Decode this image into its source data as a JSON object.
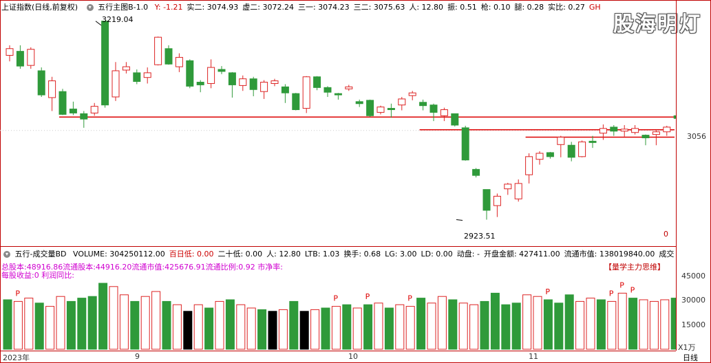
{
  "main_header": {
    "index_name": "上证指数(日线,前复权)",
    "indicator": "五行主图B-1.0",
    "items": [
      {
        "label": "Y: -1.21",
        "color": "#cc0000"
      },
      {
        "label": "实二: 3074.93",
        "color": "#000000"
      },
      {
        "label": "虚二: 3072.24",
        "color": "#000000"
      },
      {
        "label": "三一: 3074.23",
        "color": "#000000"
      },
      {
        "label": "三二: 3075.63",
        "color": "#000000"
      },
      {
        "label": "人: 12.80",
        "color": "#000000"
      },
      {
        "label": "振: 0.51",
        "color": "#000000"
      },
      {
        "label": "枪: 0.10",
        "color": "#000000"
      },
      {
        "label": "腿: 0.28",
        "color": "#000000"
      },
      {
        "label": "实比: 0.27",
        "color": "#000000"
      },
      {
        "label": "GH",
        "color": "#cc0000"
      }
    ]
  },
  "watermark": "股海明灯",
  "price_axis": {
    "label_3056": "3056",
    "label_0": "0"
  },
  "annotations": {
    "high": "3219.04",
    "low": "2923.51"
  },
  "volume_header": {
    "indicator": "五行-成交量BD",
    "items": [
      {
        "label": "VOLUME: 304250112.00",
        "color": "#000000"
      },
      {
        "label": "百日低: 0.00",
        "color": "#cc0000"
      },
      {
        "label": "二十低: 0.00",
        "color": "#000000"
      },
      {
        "label": "人: 12.80",
        "color": "#000000"
      },
      {
        "label": "LTB: 1.03",
        "color": "#000000"
      },
      {
        "label": "换手: 0.68",
        "color": "#000000"
      },
      {
        "label": "LG: 3.00",
        "color": "#000000"
      },
      {
        "label": "LD: 0.00",
        "color": "#000000"
      },
      {
        "label": "动盘: -",
        "color": "#000000"
      },
      {
        "label": "开盘金额: 427411.00",
        "color": "#000000"
      },
      {
        "label": "流通市值: 138019840.00",
        "color": "#000000"
      },
      {
        "label": "成交",
        "color": "#000000"
      }
    ]
  },
  "volume_info": {
    "line1": "总股本:48916.86流通股本:44916.20流通市值:425676.91流通比例:0.92  市净率:",
    "line2": "每股收益:0    利润同比:",
    "brand": "【量学主力思维】"
  },
  "volume_axis": {
    "v45000": "45000",
    "v30000": "30000",
    "v15000": "15000",
    "unit": "X1万"
  },
  "date_axis": {
    "year": "2023年",
    "m9": "9",
    "m10": "10",
    "m11": "11",
    "period": "日线"
  },
  "colors": {
    "up": "#dd2222",
    "down": "#2f9a3a",
    "black": "#000000",
    "hline": "#dd0000"
  },
  "chart_data": {
    "type": "candlestick",
    "price_range": [
      2900,
      3230
    ],
    "candles": [
      {
        "o": 3168,
        "c": 3178,
        "h": 3183,
        "l": 3159
      },
      {
        "o": 3174,
        "c": 3152,
        "h": 3183,
        "l": 3148
      },
      {
        "o": 3153,
        "c": 3177,
        "h": 3180,
        "l": 3148
      },
      {
        "o": 3145,
        "c": 3109,
        "h": 3150,
        "l": 3106
      },
      {
        "o": 3105,
        "c": 3130,
        "h": 3136,
        "l": 3085
      },
      {
        "o": 3114,
        "c": 3080,
        "h": 3118,
        "l": 3079
      },
      {
        "o": 3088,
        "c": 3082,
        "h": 3099,
        "l": 3079
      },
      {
        "o": 3081,
        "c": 3073,
        "h": 3085,
        "l": 3060
      },
      {
        "o": 3082,
        "c": 3092,
        "h": 3097,
        "l": 3078
      },
      {
        "o": 3219,
        "c": 3094,
        "h": 3219,
        "l": 3090
      },
      {
        "o": 3106,
        "c": 3145,
        "h": 3158,
        "l": 3100
      },
      {
        "o": 3146,
        "c": 3151,
        "h": 3158,
        "l": 3141
      },
      {
        "o": 3142,
        "c": 3129,
        "h": 3147,
        "l": 3125
      },
      {
        "o": 3135,
        "c": 3142,
        "h": 3150,
        "l": 3126
      },
      {
        "o": 3154,
        "c": 3195,
        "h": 3196,
        "l": 3153
      },
      {
        "o": 3178,
        "c": 3155,
        "h": 3183,
        "l": 3154
      },
      {
        "o": 3151,
        "c": 3165,
        "h": 3171,
        "l": 3143
      },
      {
        "o": 3160,
        "c": 3122,
        "h": 3162,
        "l": 3119
      },
      {
        "o": 3128,
        "c": 3124,
        "h": 3131,
        "l": 3113
      },
      {
        "o": 3126,
        "c": 3150,
        "h": 3162,
        "l": 3119
      },
      {
        "o": 3147,
        "c": 3144,
        "h": 3152,
        "l": 3140
      },
      {
        "o": 3142,
        "c": 3124,
        "h": 3143,
        "l": 3105
      },
      {
        "o": 3123,
        "c": 3133,
        "h": 3138,
        "l": 3115
      },
      {
        "o": 3133,
        "c": 3117,
        "h": 3136,
        "l": 3107
      },
      {
        "o": 3114,
        "c": 3128,
        "h": 3131,
        "l": 3103
      },
      {
        "o": 3126,
        "c": 3130,
        "h": 3133,
        "l": 3122
      },
      {
        "o": 3121,
        "c": 3112,
        "h": 3125,
        "l": 3097
      },
      {
        "o": 3111,
        "c": 3087,
        "h": 3112,
        "l": 3086
      },
      {
        "o": 3089,
        "c": 3136,
        "h": 3137,
        "l": 3082
      },
      {
        "o": 3136,
        "c": 3120,
        "h": 3137,
        "l": 3116
      },
      {
        "o": 3120,
        "c": 3113,
        "h": 3122,
        "l": 3106
      },
      {
        "o": 3111,
        "c": 3109,
        "h": 3112,
        "l": 3102
      },
      {
        "o": 3118,
        "c": 3121,
        "h": 3124,
        "l": 3115
      },
      {
        "o": 3099,
        "c": 3096,
        "h": 3102,
        "l": 3091
      },
      {
        "o": 3101,
        "c": 3078,
        "h": 3102,
        "l": 3076
      },
      {
        "o": 3083,
        "c": 3091,
        "h": 3093,
        "l": 3080
      },
      {
        "o": 3089,
        "c": 3087,
        "h": 3096,
        "l": 3075
      },
      {
        "o": 3094,
        "c": 3103,
        "h": 3106,
        "l": 3086
      },
      {
        "o": 3108,
        "c": 3112,
        "h": 3115,
        "l": 3101
      },
      {
        "o": 3098,
        "c": 3093,
        "h": 3102,
        "l": 3086
      },
      {
        "o": 3094,
        "c": 3083,
        "h": 3096,
        "l": 3070
      },
      {
        "o": 3078,
        "c": 3087,
        "h": 3090,
        "l": 3070
      },
      {
        "o": 3081,
        "c": 3064,
        "h": 3081,
        "l": 3062
      },
      {
        "o": 3060,
        "c": 3012,
        "h": 3063,
        "l": 3011
      },
      {
        "o": 2998,
        "c": 2989,
        "h": 3000,
        "l": 2986
      },
      {
        "o": 2968,
        "c": 2937,
        "h": 2968,
        "l": 2923
      },
      {
        "o": 2944,
        "c": 2958,
        "h": 2962,
        "l": 2927
      },
      {
        "o": 2969,
        "c": 2976,
        "h": 2978,
        "l": 2960
      },
      {
        "o": 2954,
        "c": 2977,
        "h": 2983,
        "l": 2950
      },
      {
        "o": 2990,
        "c": 3017,
        "h": 3022,
        "l": 2977
      },
      {
        "o": 3013,
        "c": 3022,
        "h": 3025,
        "l": 3005
      },
      {
        "o": 3023,
        "c": 3017,
        "h": 3024,
        "l": 3014
      },
      {
        "o": 3035,
        "c": 3046,
        "h": 3048,
        "l": 3016
      },
      {
        "o": 3034,
        "c": 3016,
        "h": 3039,
        "l": 3010
      },
      {
        "o": 3017,
        "c": 3039,
        "h": 3041,
        "l": 3016
      },
      {
        "o": 3040,
        "c": 3038,
        "h": 3048,
        "l": 3030
      },
      {
        "o": 3052,
        "c": 3059,
        "h": 3065,
        "l": 3042
      },
      {
        "o": 3061,
        "c": 3055,
        "h": 3064,
        "l": 3048
      },
      {
        "o": 3055,
        "c": 3058,
        "h": 3064,
        "l": 3047
      },
      {
        "o": 3053,
        "c": 3059,
        "h": 3064,
        "l": 3050
      },
      {
        "o": 3049,
        "c": 3045,
        "h": 3050,
        "l": 3034
      },
      {
        "o": 3050,
        "c": 3054,
        "h": 3056,
        "l": 3034
      },
      {
        "o": 3054,
        "c": 3061,
        "h": 3063,
        "l": 3048
      },
      {
        "o": 3078,
        "c": 3074,
        "h": 3081,
        "l": 3066
      }
    ],
    "hlines": [
      3076,
      3057,
      3046
    ],
    "volume": [
      {
        "v": 30000,
        "t": "down"
      },
      {
        "v": 29000,
        "t": "up"
      },
      {
        "v": 31000,
        "t": "up"
      },
      {
        "v": 28000,
        "t": "down"
      },
      {
        "v": 26000,
        "t": "up"
      },
      {
        "v": 32000,
        "t": "up"
      },
      {
        "v": 29000,
        "t": "down"
      },
      {
        "v": 31000,
        "t": "down"
      },
      {
        "v": 32000,
        "t": "down"
      },
      {
        "v": 40000,
        "t": "down"
      },
      {
        "v": 38000,
        "t": "up"
      },
      {
        "v": 33000,
        "t": "up"
      },
      {
        "v": 29000,
        "t": "down"
      },
      {
        "v": 32000,
        "t": "up"
      },
      {
        "v": 35000,
        "t": "up"
      },
      {
        "v": 29000,
        "t": "down"
      },
      {
        "v": 27000,
        "t": "up"
      },
      {
        "v": 23000,
        "t": "black"
      },
      {
        "v": 27000,
        "t": "up"
      },
      {
        "v": 25000,
        "t": "down"
      },
      {
        "v": 29000,
        "t": "up"
      },
      {
        "v": 30000,
        "t": "down"
      },
      {
        "v": 27000,
        "t": "up"
      },
      {
        "v": 25000,
        "t": "up"
      },
      {
        "v": 24000,
        "t": "down"
      },
      {
        "v": 23000,
        "t": "black"
      },
      {
        "v": 24000,
        "t": "up"
      },
      {
        "v": 29000,
        "t": "down"
      },
      {
        "v": 23000,
        "t": "black"
      },
      {
        "v": 24000,
        "t": "up"
      },
      {
        "v": 25000,
        "t": "down"
      },
      {
        "v": 26000,
        "t": "up"
      },
      {
        "v": 27000,
        "t": "down"
      },
      {
        "v": 25000,
        "t": "up"
      },
      {
        "v": 27000,
        "t": "down"
      },
      {
        "v": 28000,
        "t": "up"
      },
      {
        "v": 25000,
        "t": "down"
      },
      {
        "v": 27000,
        "t": "up"
      },
      {
        "v": 26000,
        "t": "up"
      },
      {
        "v": 31000,
        "t": "down"
      },
      {
        "v": 28000,
        "t": "up"
      },
      {
        "v": 32000,
        "t": "up"
      },
      {
        "v": 30000,
        "t": "down"
      },
      {
        "v": 28000,
        "t": "up"
      },
      {
        "v": 27000,
        "t": "up"
      },
      {
        "v": 29000,
        "t": "down"
      },
      {
        "v": 34000,
        "t": "down"
      },
      {
        "v": 27000,
        "t": "down"
      },
      {
        "v": 28000,
        "t": "down"
      },
      {
        "v": 33000,
        "t": "up"
      },
      {
        "v": 32000,
        "t": "up"
      },
      {
        "v": 30000,
        "t": "down"
      },
      {
        "v": 28000,
        "t": "down"
      },
      {
        "v": 33000,
        "t": "down"
      },
      {
        "v": 29000,
        "t": "up"
      },
      {
        "v": 31000,
        "t": "up"
      },
      {
        "v": 30000,
        "t": "down"
      },
      {
        "v": 29000,
        "t": "up"
      },
      {
        "v": 34000,
        "t": "up"
      },
      {
        "v": 31000,
        "t": "down"
      },
      {
        "v": 30000,
        "t": "up"
      },
      {
        "v": 29000,
        "t": "up"
      },
      {
        "v": 30000,
        "t": "up"
      },
      {
        "v": 31000,
        "t": "down"
      }
    ],
    "volume_range": [
      0,
      50000
    ],
    "p_markers": [
      1,
      31,
      34,
      38,
      51,
      57,
      58,
      59
    ]
  }
}
